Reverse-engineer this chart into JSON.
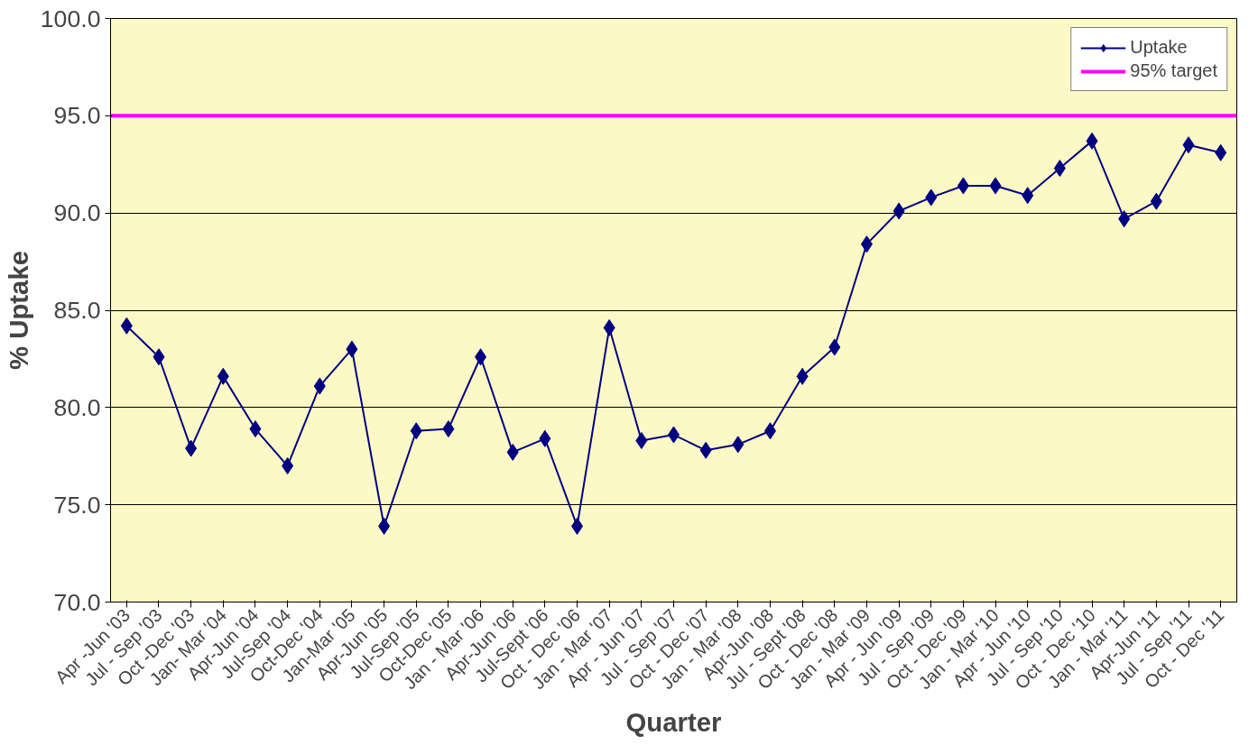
{
  "chart_data": {
    "type": "line",
    "xlabel": "Quarter",
    "ylabel": "% Uptake",
    "categories": [
      "Apr -Jun '03",
      "Jul - Sep '03",
      "Oct -Dec '03",
      "Jan- Mar '04",
      "Apr-Jun '04",
      "Jul-Sep '04",
      "Oct-Dec '04",
      "Jan-Mar '05",
      "Apr-Jun '05",
      "Jul-Sep '05",
      "Oct-Dec '05",
      "Jan - Mar '06",
      "Apr-Jun '06",
      "Jul-Sept '06",
      "Oct - Dec '06",
      "Jan - Mar '07",
      "Apr - Jun '07",
      "Jul - Sep '07",
      "Oct - Dec '07",
      "Jan - Mar '08",
      "Apr-Jun '08",
      "Jul - Sept '08",
      "Oct - Dec '08",
      "Jan - Mar '09",
      "Apr - Jun '09",
      "Jul - Sep '09",
      "Oct - Dec '09",
      "Jan - Mar '10",
      "Apr - Jun '10",
      "Jul - Sep '10",
      "Oct - Dec '10",
      "Jan - Mar '11",
      "Apr-Jun '11",
      "Jul - Sep '11",
      "Oct - Dec '11"
    ],
    "series": [
      {
        "name": "Uptake",
        "color": "#000080",
        "values": [
          84.2,
          82.6,
          77.9,
          81.6,
          78.9,
          77.0,
          81.1,
          83.0,
          73.9,
          78.8,
          78.9,
          82.6,
          77.7,
          78.4,
          73.9,
          84.1,
          78.3,
          78.6,
          77.8,
          78.1,
          78.8,
          81.6,
          83.1,
          88.4,
          90.1,
          90.8,
          91.4,
          91.4,
          90.9,
          92.3,
          93.7,
          89.7,
          90.6,
          93.5,
          93.1
        ]
      }
    ],
    "ref_lines": [
      {
        "axis": "y",
        "value": 95,
        "label": "95% target",
        "color": "#ff00ff"
      }
    ],
    "ylim": [
      70,
      100
    ],
    "yticks": [
      {
        "value": 70,
        "label": "70.0"
      },
      {
        "value": 75,
        "label": "75.0"
      },
      {
        "value": 80,
        "label": "80.0"
      },
      {
        "value": 85,
        "label": "85.0"
      },
      {
        "value": 90,
        "label": "90.0"
      },
      {
        "value": 95,
        "label": "95.0"
      },
      {
        "value": 100,
        "label": "100.0"
      }
    ],
    "grid": "y",
    "legend": "top right",
    "marker": "diamond",
    "line_style": "solid"
  }
}
